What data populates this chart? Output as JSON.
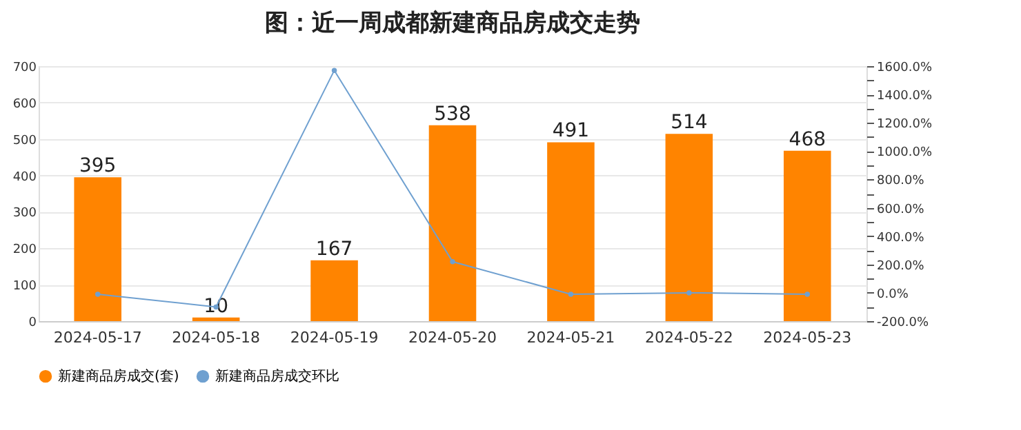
{
  "chart_data": {
    "type": "bar",
    "title": "图：近一周成都新建商品房成交走势",
    "categories": [
      "2024-05-17",
      "2024-05-18",
      "2024-05-19",
      "2024-05-20",
      "2024-05-21",
      "2024-05-22",
      "2024-05-23"
    ],
    "series": [
      {
        "name": "新建商品房成交(套)",
        "color": "#ff8400",
        "values": [
          395,
          10,
          167,
          538,
          491,
          514,
          468
        ],
        "value_labels": [
          "395",
          "10",
          "167",
          "538",
          "491",
          "514",
          "468"
        ]
      },
      {
        "name": "新建商品房成交环比",
        "type": "line",
        "axis": "y2",
        "color": "#6fa0d0",
        "marker": "circle",
        "values": [
          -10,
          -100,
          1570,
          220,
          -10,
          0,
          -10
        ]
      }
    ],
    "ylim": [
      0,
      700
    ],
    "yticks": [
      0,
      100,
      200,
      300,
      400,
      500,
      600,
      700
    ],
    "y2lim": [
      -200,
      1600
    ],
    "y2ticks": [
      {
        "value": -200,
        "label": "-200.0%"
      },
      {
        "value": -100,
        "label": null
      },
      {
        "value": 0,
        "label": "0.0%"
      },
      {
        "value": 100,
        "label": null
      },
      {
        "value": 200,
        "label": "200.0%"
      },
      {
        "value": 300,
        "label": null
      },
      {
        "value": 400,
        "label": "400.0%"
      },
      {
        "value": 500,
        "label": null
      },
      {
        "value": 600,
        "label": "600.0%"
      },
      {
        "value": 700,
        "label": null
      },
      {
        "value": 800,
        "label": "800.0%"
      },
      {
        "value": 900,
        "label": null
      },
      {
        "value": 1000,
        "label": "1000.0%"
      },
      {
        "value": 1100,
        "label": null
      },
      {
        "value": 1200,
        "label": "1200.0%"
      },
      {
        "value": 1300,
        "label": null
      },
      {
        "value": 1400,
        "label": "1400.0%"
      },
      {
        "value": 1500,
        "label": null
      },
      {
        "value": 1600,
        "label": "1600.0%"
      }
    ],
    "grid": "y",
    "legend": "bottom"
  }
}
